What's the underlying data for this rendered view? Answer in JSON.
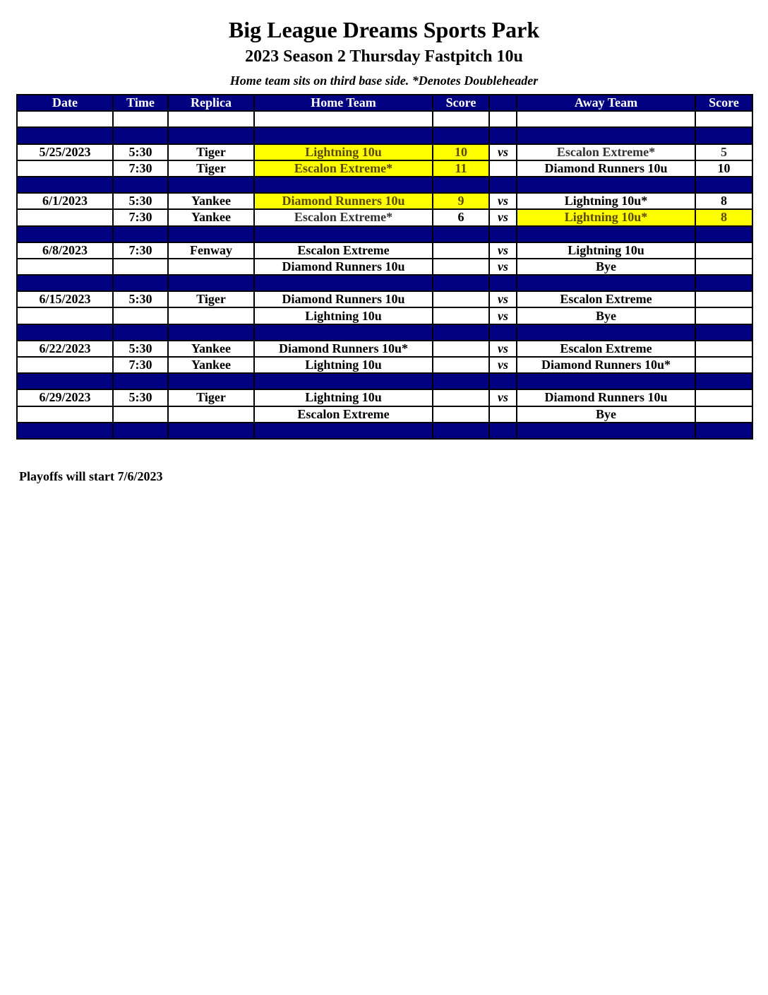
{
  "header": {
    "title": "Big League Dreams Sports Park",
    "subtitle": "2023 Season 2 Thursday Fastpitch 10u",
    "note": "Home team sits on third base side.  *Denotes Doubleheader"
  },
  "colors": {
    "header_bg": "#000080",
    "winner_highlight": "#ffff00"
  },
  "columns": [
    "Date",
    "Time",
    "Replica",
    "Home Team",
    "Score",
    "",
    "Away Team",
    "Score"
  ],
  "rows": [
    {
      "type": "blank"
    },
    {
      "type": "sep"
    },
    {
      "type": "game",
      "date": "5/25/2023",
      "time": "5:30",
      "replica": "Tiger",
      "home": "Lightning 10u",
      "home_score": "10",
      "vs": "vs",
      "away": "Escalon Extreme*",
      "away_score": "5",
      "winner": "home",
      "gray_away": true
    },
    {
      "type": "game",
      "date": "",
      "time": "7:30",
      "replica": "Tiger",
      "home": "Escalon Extreme*",
      "home_score": "11",
      "vs": "",
      "away": "Diamond Runners 10u",
      "away_score": "10",
      "winner": "home"
    },
    {
      "type": "sep"
    },
    {
      "type": "game",
      "date": "6/1/2023",
      "time": "5:30",
      "replica": "Yankee",
      "home": "Diamond Runners 10u",
      "home_score": "9",
      "vs": "vs",
      "away": "Lightning 10u*",
      "away_score": "8",
      "winner": "home"
    },
    {
      "type": "game",
      "date": "",
      "time": "7:30",
      "replica": "Yankee",
      "home": "Escalon Extreme*",
      "home_score": "6",
      "vs": "vs",
      "away": "Lightning 10u*",
      "away_score": "8",
      "winner": "away",
      "gray_home": true
    },
    {
      "type": "sep"
    },
    {
      "type": "game",
      "date": "6/8/2023",
      "time": "7:30",
      "replica": "Fenway",
      "home": "Escalon Extreme",
      "home_score": "",
      "vs": "vs",
      "away": "Lightning 10u",
      "away_score": ""
    },
    {
      "type": "game",
      "date": "",
      "time": "",
      "replica": "",
      "home": "Diamond Runners 10u",
      "home_score": "",
      "vs": "vs",
      "away": "Bye",
      "away_score": ""
    },
    {
      "type": "sep"
    },
    {
      "type": "game",
      "date": "6/15/2023",
      "time": "5:30",
      "replica": "Tiger",
      "home": "Diamond Runners 10u",
      "home_score": "",
      "vs": "vs",
      "away": "Escalon Extreme",
      "away_score": ""
    },
    {
      "type": "game",
      "date": "",
      "time": "",
      "replica": "",
      "home": "Lightning 10u",
      "home_score": "",
      "vs": "vs",
      "away": "Bye",
      "away_score": ""
    },
    {
      "type": "sep"
    },
    {
      "type": "game",
      "date": "6/22/2023",
      "time": "5:30",
      "replica": "Yankee",
      "home": "Diamond Runners 10u*",
      "home_score": "",
      "vs": "vs",
      "away": "Escalon Extreme",
      "away_score": ""
    },
    {
      "type": "game",
      "date": "",
      "time": "7:30",
      "replica": "Yankee",
      "home": "Lightning 10u",
      "home_score": "",
      "vs": "vs",
      "away": "Diamond Runners 10u*",
      "away_score": ""
    },
    {
      "type": "sep"
    },
    {
      "type": "game",
      "date": "6/29/2023",
      "time": "5:30",
      "replica": "Tiger",
      "home": "Lightning 10u",
      "home_score": "",
      "vs": "vs",
      "away": "Diamond Runners 10u",
      "away_score": ""
    },
    {
      "type": "game",
      "date": "",
      "time": "",
      "replica": "",
      "home": "Escalon Extreme",
      "home_score": "",
      "vs": "",
      "away": "Bye",
      "away_score": ""
    },
    {
      "type": "sep"
    }
  ],
  "footer": "Playoffs will start 7/6/2023"
}
